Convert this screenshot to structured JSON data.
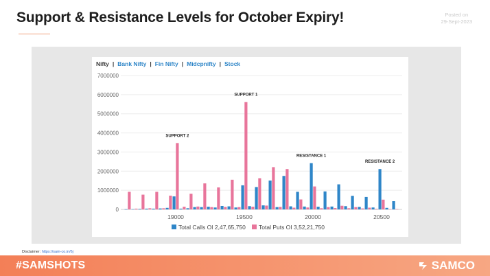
{
  "header": {
    "title": "Support & Resistance Levels for October Expiry!",
    "posted_label": "Posted on",
    "posted_date": "29-Sept-2023"
  },
  "tabs": [
    "Nifty",
    "Bank Nifty",
    "Fin Nifty",
    "Midcpnifty",
    "Stock"
  ],
  "active_tab": "Nifty",
  "colors": {
    "calls": "#2f86c8",
    "puts": "#e8759b",
    "footer": "#f37f57"
  },
  "chart_data": {
    "type": "bar",
    "ylim": [
      0,
      7000000
    ],
    "yticks": [
      0,
      1000000,
      2000000,
      3000000,
      4000000,
      5000000,
      6000000,
      7000000
    ],
    "xticks": [
      "19000",
      "19500",
      "20000",
      "20500"
    ],
    "xlim": [
      18600,
      20650
    ],
    "grid": true,
    "legend_position": "bottom",
    "series": [
      {
        "name": "Total Calls OI 2,47,65,750",
        "points": [
          [
            18650,
            10000
          ],
          [
            18700,
            15000
          ],
          [
            18750,
            30000
          ],
          [
            18800,
            40000
          ],
          [
            18850,
            40000
          ],
          [
            18900,
            50000
          ],
          [
            18950,
            80000
          ],
          [
            19000,
            680000
          ],
          [
            19050,
            40000
          ],
          [
            19100,
            60000
          ],
          [
            19150,
            120000
          ],
          [
            19200,
            120000
          ],
          [
            19250,
            140000
          ],
          [
            19300,
            100000
          ],
          [
            19350,
            180000
          ],
          [
            19400,
            160000
          ],
          [
            19450,
            100000
          ],
          [
            19500,
            1260000
          ],
          [
            19550,
            170000
          ],
          [
            19600,
            1170000
          ],
          [
            19650,
            210000
          ],
          [
            19700,
            1510000
          ],
          [
            19750,
            120000
          ],
          [
            19800,
            1750000
          ],
          [
            19850,
            160000
          ],
          [
            19900,
            920000
          ],
          [
            19950,
            150000
          ],
          [
            20000,
            2420000
          ],
          [
            20050,
            140000
          ],
          [
            20100,
            940000
          ],
          [
            20150,
            150000
          ],
          [
            20200,
            1310000
          ],
          [
            20250,
            170000
          ],
          [
            20300,
            710000
          ],
          [
            20350,
            130000
          ],
          [
            20400,
            650000
          ],
          [
            20450,
            100000
          ],
          [
            20500,
            2110000
          ],
          [
            20550,
            80000
          ],
          [
            20600,
            430000
          ]
        ]
      },
      {
        "name": "Total Puts OI 3,52,21,750",
        "points": [
          [
            18650,
            920000
          ],
          [
            18700,
            40000
          ],
          [
            18750,
            770000
          ],
          [
            18800,
            60000
          ],
          [
            18850,
            920000
          ],
          [
            18900,
            60000
          ],
          [
            18950,
            720000
          ],
          [
            19000,
            3470000
          ],
          [
            19050,
            140000
          ],
          [
            19100,
            820000
          ],
          [
            19150,
            150000
          ],
          [
            19200,
            1360000
          ],
          [
            19250,
            120000
          ],
          [
            19300,
            1150000
          ],
          [
            19350,
            130000
          ],
          [
            19400,
            1550000
          ],
          [
            19450,
            120000
          ],
          [
            19500,
            5610000
          ],
          [
            19550,
            140000
          ],
          [
            19600,
            1630000
          ],
          [
            19650,
            200000
          ],
          [
            19700,
            2210000
          ],
          [
            19750,
            130000
          ],
          [
            19800,
            2110000
          ],
          [
            19850,
            90000
          ],
          [
            19900,
            520000
          ],
          [
            19950,
            100000
          ],
          [
            20000,
            1200000
          ],
          [
            20050,
            60000
          ],
          [
            20100,
            120000
          ],
          [
            20150,
            70000
          ],
          [
            20200,
            190000
          ],
          [
            20250,
            60000
          ],
          [
            20300,
            120000
          ],
          [
            20350,
            50000
          ],
          [
            20400,
            90000
          ],
          [
            20450,
            30000
          ],
          [
            20500,
            510000
          ],
          [
            20550,
            20000
          ],
          [
            20600,
            20000
          ]
        ]
      }
    ],
    "annotations": [
      {
        "text": "SUPPORT 2",
        "x": 19000,
        "y": 3470000,
        "anchor": "puts"
      },
      {
        "text": "SUPPORT 1",
        "x": 19500,
        "y": 5610000,
        "anchor": "puts"
      },
      {
        "text": "RESISTANCE 1",
        "x": 20000,
        "y": 2420000,
        "anchor": "calls"
      },
      {
        "text": "RESISTANCE 2",
        "x": 20500,
        "y": 2110000,
        "anchor": "calls"
      }
    ]
  },
  "disclaimer": {
    "label": "Disclaimer:",
    "link": "https://sam-co.in/6j"
  },
  "footer": {
    "hashtag": "#SAMSHOTS",
    "brand": "SAMCO"
  }
}
